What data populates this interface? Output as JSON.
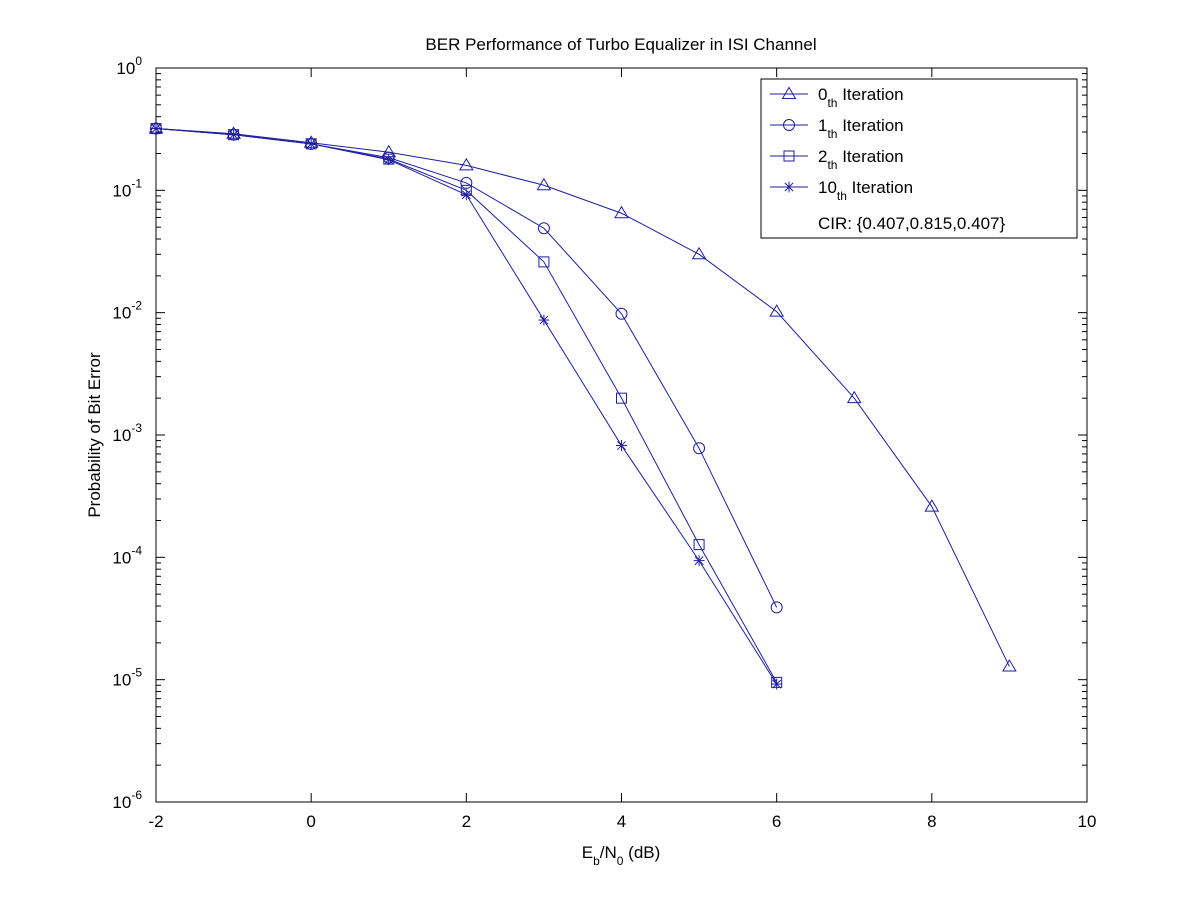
{
  "chart_data": {
    "type": "line",
    "title": "BER Performance of Turbo Equalizer in ISI Channel",
    "xlabel": {
      "main": "E",
      "sub1": "b",
      "mid": "/N",
      "sub2": "0",
      "tail": " (dB)"
    },
    "ylabel": "Probability of Bit Error",
    "xlim": [
      -2,
      10
    ],
    "ylim": [
      1e-06,
      1
    ],
    "yscale": "log",
    "grid": false,
    "legend_position": "top-right",
    "x_ticks": [
      "-2",
      "0",
      "2",
      "4",
      "6",
      "8",
      "10"
    ],
    "x_tick_values": [
      -2,
      0,
      2,
      4,
      6,
      8,
      10
    ],
    "y_ticks": [
      {
        "value": 1,
        "base": "10",
        "exp": "0"
      },
      {
        "value": 0.1,
        "base": "10",
        "exp": "-1"
      },
      {
        "value": 0.01,
        "base": "10",
        "exp": "-2"
      },
      {
        "value": 0.001,
        "base": "10",
        "exp": "-3"
      },
      {
        "value": 0.0001,
        "base": "10",
        "exp": "-4"
      },
      {
        "value": 1e-05,
        "base": "10",
        "exp": "-5"
      },
      {
        "value": 1e-06,
        "base": "10",
        "exp": "-6"
      }
    ],
    "series": [
      {
        "name_main": "0",
        "name_sub": "th",
        "name_tail": " Iteration",
        "marker": "triangle",
        "x": [
          -2,
          -1,
          0,
          1,
          2,
          3,
          4,
          5,
          6,
          7,
          8,
          9
        ],
        "y": [
          0.32,
          0.29,
          0.245,
          0.205,
          0.16,
          0.11,
          0.065,
          0.03,
          0.0102,
          0.002,
          0.00026,
          1.28e-05
        ]
      },
      {
        "name_main": "1",
        "name_sub": "th",
        "name_tail": " Iteration",
        "marker": "circle",
        "x": [
          -2,
          -1,
          0,
          1,
          2,
          3,
          4,
          5,
          6
        ],
        "y": [
          0.32,
          0.285,
          0.24,
          0.185,
          0.115,
          0.049,
          0.0098,
          0.00078,
          3.9e-05
        ]
      },
      {
        "name_main": "2",
        "name_sub": "th",
        "name_tail": " Iteration",
        "marker": "square",
        "x": [
          -2,
          -1,
          0,
          1,
          2,
          3,
          4,
          5,
          6
        ],
        "y": [
          0.32,
          0.285,
          0.24,
          0.18,
          0.1,
          0.026,
          0.002,
          0.000127,
          9.5e-06
        ]
      },
      {
        "name_main": "10",
        "name_sub": "th",
        "name_tail": " Iteration",
        "marker": "star",
        "x": [
          -2,
          -1,
          0,
          1,
          2,
          3,
          4,
          5,
          6
        ],
        "y": [
          0.32,
          0.285,
          0.24,
          0.178,
          0.092,
          0.0087,
          0.00082,
          9.4e-05,
          9.2e-06
        ]
      }
    ],
    "annotation": "CIR: {0.407,0.815,0.407}",
    "line_color": "#1f1fa0"
  }
}
